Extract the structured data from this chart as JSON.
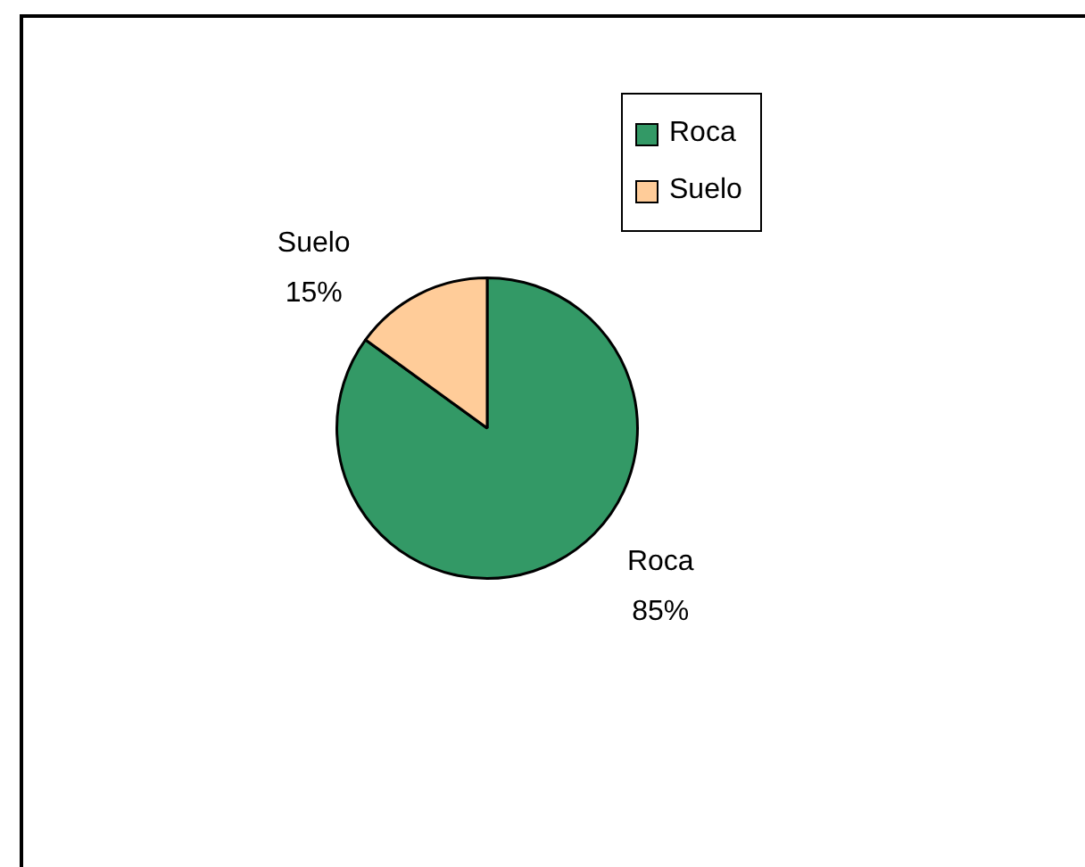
{
  "chart_data": {
    "type": "pie",
    "categories": [
      "Roca",
      "Suelo"
    ],
    "values": [
      85,
      15
    ],
    "colors": [
      "#339966",
      "#ffcc99"
    ],
    "value_labels": [
      "85%",
      "15%"
    ],
    "legend": "top right"
  }
}
